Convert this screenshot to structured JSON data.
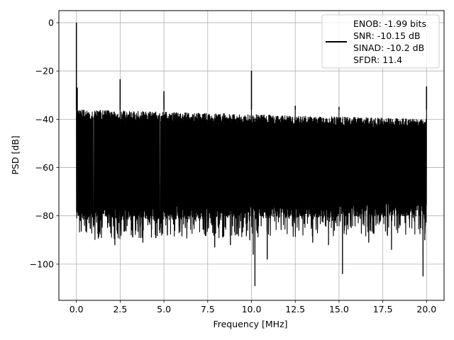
{
  "chart_data": {
    "type": "line",
    "title": "",
    "xlabel": "Frequency [MHz]",
    "ylabel": "PSD [dB]",
    "xlim": [
      -1.0,
      21.0
    ],
    "ylim": [
      -115,
      5
    ],
    "xticks": [
      0.0,
      2.5,
      5.0,
      7.5,
      10.0,
      12.5,
      15.0,
      17.5,
      20.0
    ],
    "xtick_labels": [
      "0.0",
      "2.5",
      "5.0",
      "7.5",
      "10.0",
      "12.5",
      "15.0",
      "17.5",
      "20.0"
    ],
    "yticks": [
      0,
      -20,
      -40,
      -60,
      -80,
      -100
    ],
    "ytick_labels": [
      "0",
      "−20",
      "−40",
      "−60",
      "−80",
      "−100"
    ],
    "grid": true,
    "legend_position": "top-right",
    "legend": {
      "entries": [
        "ENOB: -1.99 bits",
        "SNR: -10.15 dB",
        "SINAD: -10.2 dB",
        "SFDR: 11.4"
      ]
    },
    "series": [
      {
        "color": "#000000",
        "x_range": [
          0.0,
          20.0
        ],
        "noise_floor_top": -36,
        "noise_floor_top_end": -40,
        "noise_floor_bottom": -80,
        "noise_floor_bottom_end": -78,
        "peaks": [
          {
            "x": 0.0,
            "y": 0.0
          },
          {
            "x": 0.05,
            "y": -27
          },
          {
            "x": 2.5,
            "y": -23.5
          },
          {
            "x": 5.0,
            "y": -28.5
          },
          {
            "x": 10.0,
            "y": -20
          },
          {
            "x": 12.5,
            "y": -34.5
          },
          {
            "x": 15.0,
            "y": -35
          },
          {
            "x": 20.0,
            "y": -26.5
          }
        ],
        "dips": [
          {
            "x": 0.1,
            "y": -76
          },
          {
            "x": 2.2,
            "y": -92
          },
          {
            "x": 3.8,
            "y": -91
          },
          {
            "x": 5.2,
            "y": -88
          },
          {
            "x": 7.9,
            "y": -93
          },
          {
            "x": 8.8,
            "y": -92
          },
          {
            "x": 9.9,
            "y": -90
          },
          {
            "x": 10.1,
            "y": -96
          },
          {
            "x": 10.2,
            "y": -109
          },
          {
            "x": 10.9,
            "y": -98
          },
          {
            "x": 13.5,
            "y": -91
          },
          {
            "x": 14.4,
            "y": -92
          },
          {
            "x": 15.2,
            "y": -104
          },
          {
            "x": 16.7,
            "y": -91
          },
          {
            "x": 18.0,
            "y": -94
          },
          {
            "x": 19.8,
            "y": -105
          },
          {
            "x": 19.9,
            "y": -90
          }
        ]
      }
    ]
  }
}
